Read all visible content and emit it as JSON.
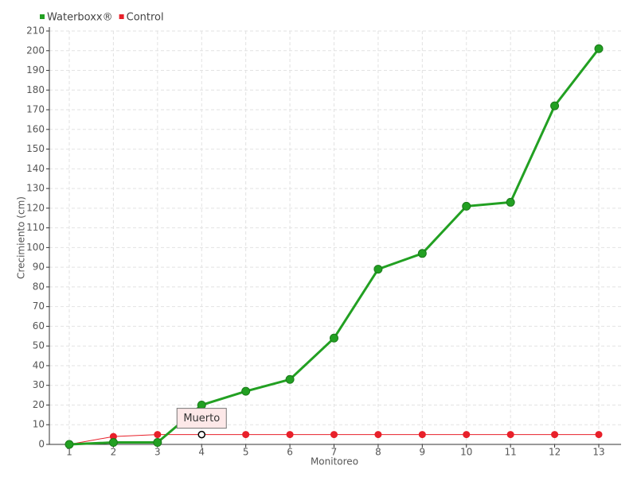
{
  "chart_data": {
    "type": "line",
    "categories": [
      "1",
      "2",
      "3",
      "4",
      "5",
      "6",
      "7",
      "8",
      "9",
      "10",
      "11",
      "12",
      "13"
    ],
    "series": [
      {
        "name": "Waterboxx®",
        "color": "#22a022",
        "values": [
          0,
          1,
          1,
          20,
          27,
          33,
          54,
          89,
          97,
          121,
          123,
          172,
          201
        ]
      },
      {
        "name": "Control",
        "color": "#e8202a",
        "values": [
          0,
          4,
          5,
          5,
          5,
          5,
          5,
          5,
          5,
          5,
          5,
          5,
          5
        ]
      }
    ],
    "ylim": [
      0,
      210
    ],
    "yticks": [
      0,
      10,
      20,
      30,
      40,
      50,
      60,
      70,
      80,
      90,
      100,
      110,
      120,
      130,
      140,
      150,
      160,
      170,
      180,
      190,
      200,
      210
    ],
    "xlabel": "Monitoreo",
    "ylabel": "Crecimiento (cm)",
    "grid": true,
    "legend": "top-left",
    "annotations": [
      {
        "text": "Muerto",
        "series": "Control",
        "category": "4"
      }
    ]
  }
}
